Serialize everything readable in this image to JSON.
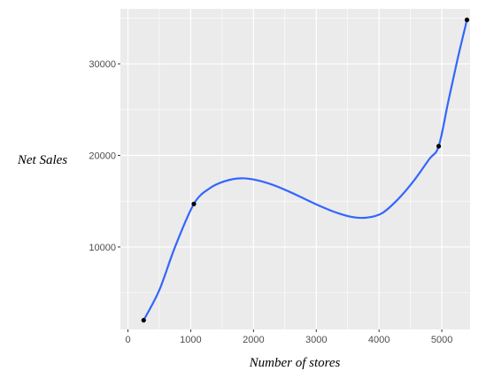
{
  "chart_data": {
    "type": "scatter",
    "title": "",
    "xlabel": "Number of stores",
    "ylabel": "Net Sales",
    "xlim": [
      -120,
      5450
    ],
    "ylim": [
      1000,
      36000
    ],
    "x_ticks": [
      0,
      1000,
      2000,
      3000,
      4000,
      5000
    ],
    "y_ticks": [
      10000,
      20000,
      30000
    ],
    "x_tick_labels": [
      "0",
      "1000",
      "2000",
      "3000",
      "4000",
      "5000"
    ],
    "y_tick_labels": [
      "10000",
      "20000",
      "30000"
    ],
    "grid": true,
    "background": "#ebebeb",
    "grid_color": "#ffffff",
    "points": {
      "x": [
        250,
        1050,
        4950,
        5400
      ],
      "y": [
        2000,
        14700,
        21000,
        34800
      ],
      "color": "#000000"
    },
    "smooth_line": {
      "color": "#3366ff",
      "x": [
        250,
        500,
        750,
        1050,
        1300,
        1550,
        1800,
        2050,
        2300,
        2550,
        2800,
        3050,
        3300,
        3550,
        3800,
        4050,
        4300,
        4550,
        4800,
        4950,
        5100,
        5250,
        5400
      ],
      "y": [
        2000,
        5300,
        10000,
        14700,
        16400,
        17200,
        17500,
        17300,
        16800,
        16100,
        15300,
        14500,
        13800,
        13300,
        13200,
        13700,
        15200,
        17200,
        19600,
        21000,
        25800,
        30500,
        34800
      ]
    }
  }
}
